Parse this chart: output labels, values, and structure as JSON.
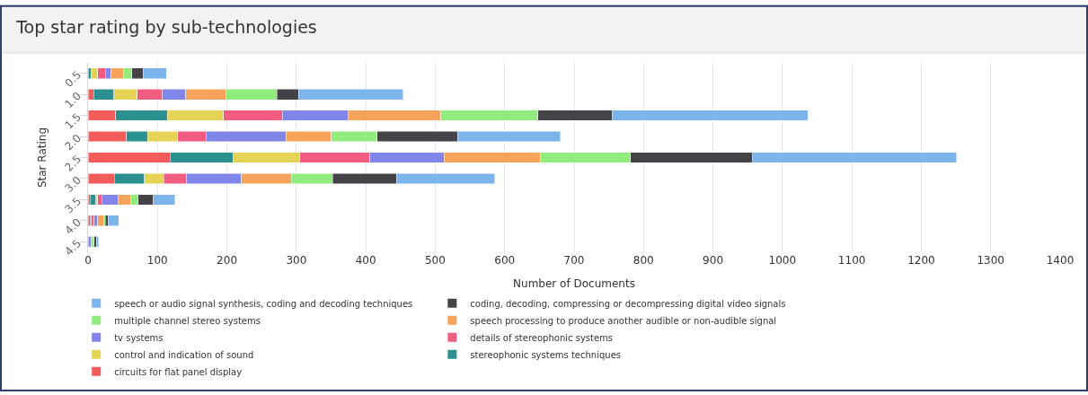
{
  "chart_data": {
    "type": "bar",
    "orientation": "horizontal",
    "stacked": true,
    "title": "Top star rating by sub-technologies",
    "xlabel": "Number of Documents",
    "ylabel": "Star Rating",
    "categories": [
      "0.5",
      "1.0",
      "1.5",
      "2.0",
      "2.5",
      "3.0",
      "3.5",
      "4.0",
      "4.5"
    ],
    "series": [
      {
        "name": "circuits for flat panel display",
        "color": "#f45b5b",
        "values": [
          null,
          8,
          40,
          55,
          118,
          38,
          3,
          3,
          null
        ]
      },
      {
        "name": "stereophonic systems techniques",
        "color": "#2b908f",
        "values": [
          4,
          29,
          74,
          31,
          91,
          43,
          8,
          2,
          null
        ]
      },
      {
        "name": "control and indication of sound",
        "color": "#e4d354",
        "values": [
          10,
          34,
          81,
          43,
          96,
          28,
          3,
          null,
          null
        ]
      },
      {
        "name": "details of stereophonic systems",
        "color": "#f15c80",
        "values": [
          11,
          36,
          85,
          41,
          101,
          33,
          6,
          4,
          null
        ]
      },
      {
        "name": "tv systems",
        "color": "#8085e9",
        "values": [
          8,
          34,
          94,
          115,
          107,
          79,
          23,
          5,
          5
        ]
      },
      {
        "name": "speech processing to produce another audible or non-audible signal",
        "color": "#f7a35c",
        "values": [
          18,
          57,
          134,
          65,
          138,
          72,
          18,
          8,
          null
        ]
      },
      {
        "name": "multiple channel stereo systems",
        "color": "#90ed7d",
        "values": [
          12,
          74,
          140,
          66,
          130,
          59,
          11,
          3,
          4
        ]
      },
      {
        "name": "coding, decoding, compressing or decompressing digital video signals",
        "color": "#434348",
        "values": [
          16,
          31,
          107,
          117,
          176,
          93,
          22,
          4,
          3
        ]
      },
      {
        "name": "speech or audio signal synthesis, coding and decoding techniques",
        "color": "#7cb5ec",
        "values": [
          34,
          151,
          282,
          147,
          294,
          141,
          31,
          15,
          3
        ]
      }
    ],
    "xlim": [
      0,
      1400
    ],
    "xticks": [
      0,
      100,
      200,
      300,
      400,
      500,
      600,
      700,
      800,
      900,
      1000,
      1100,
      1200,
      1300,
      1400
    ],
    "grid": "x",
    "legend": "bottom"
  }
}
